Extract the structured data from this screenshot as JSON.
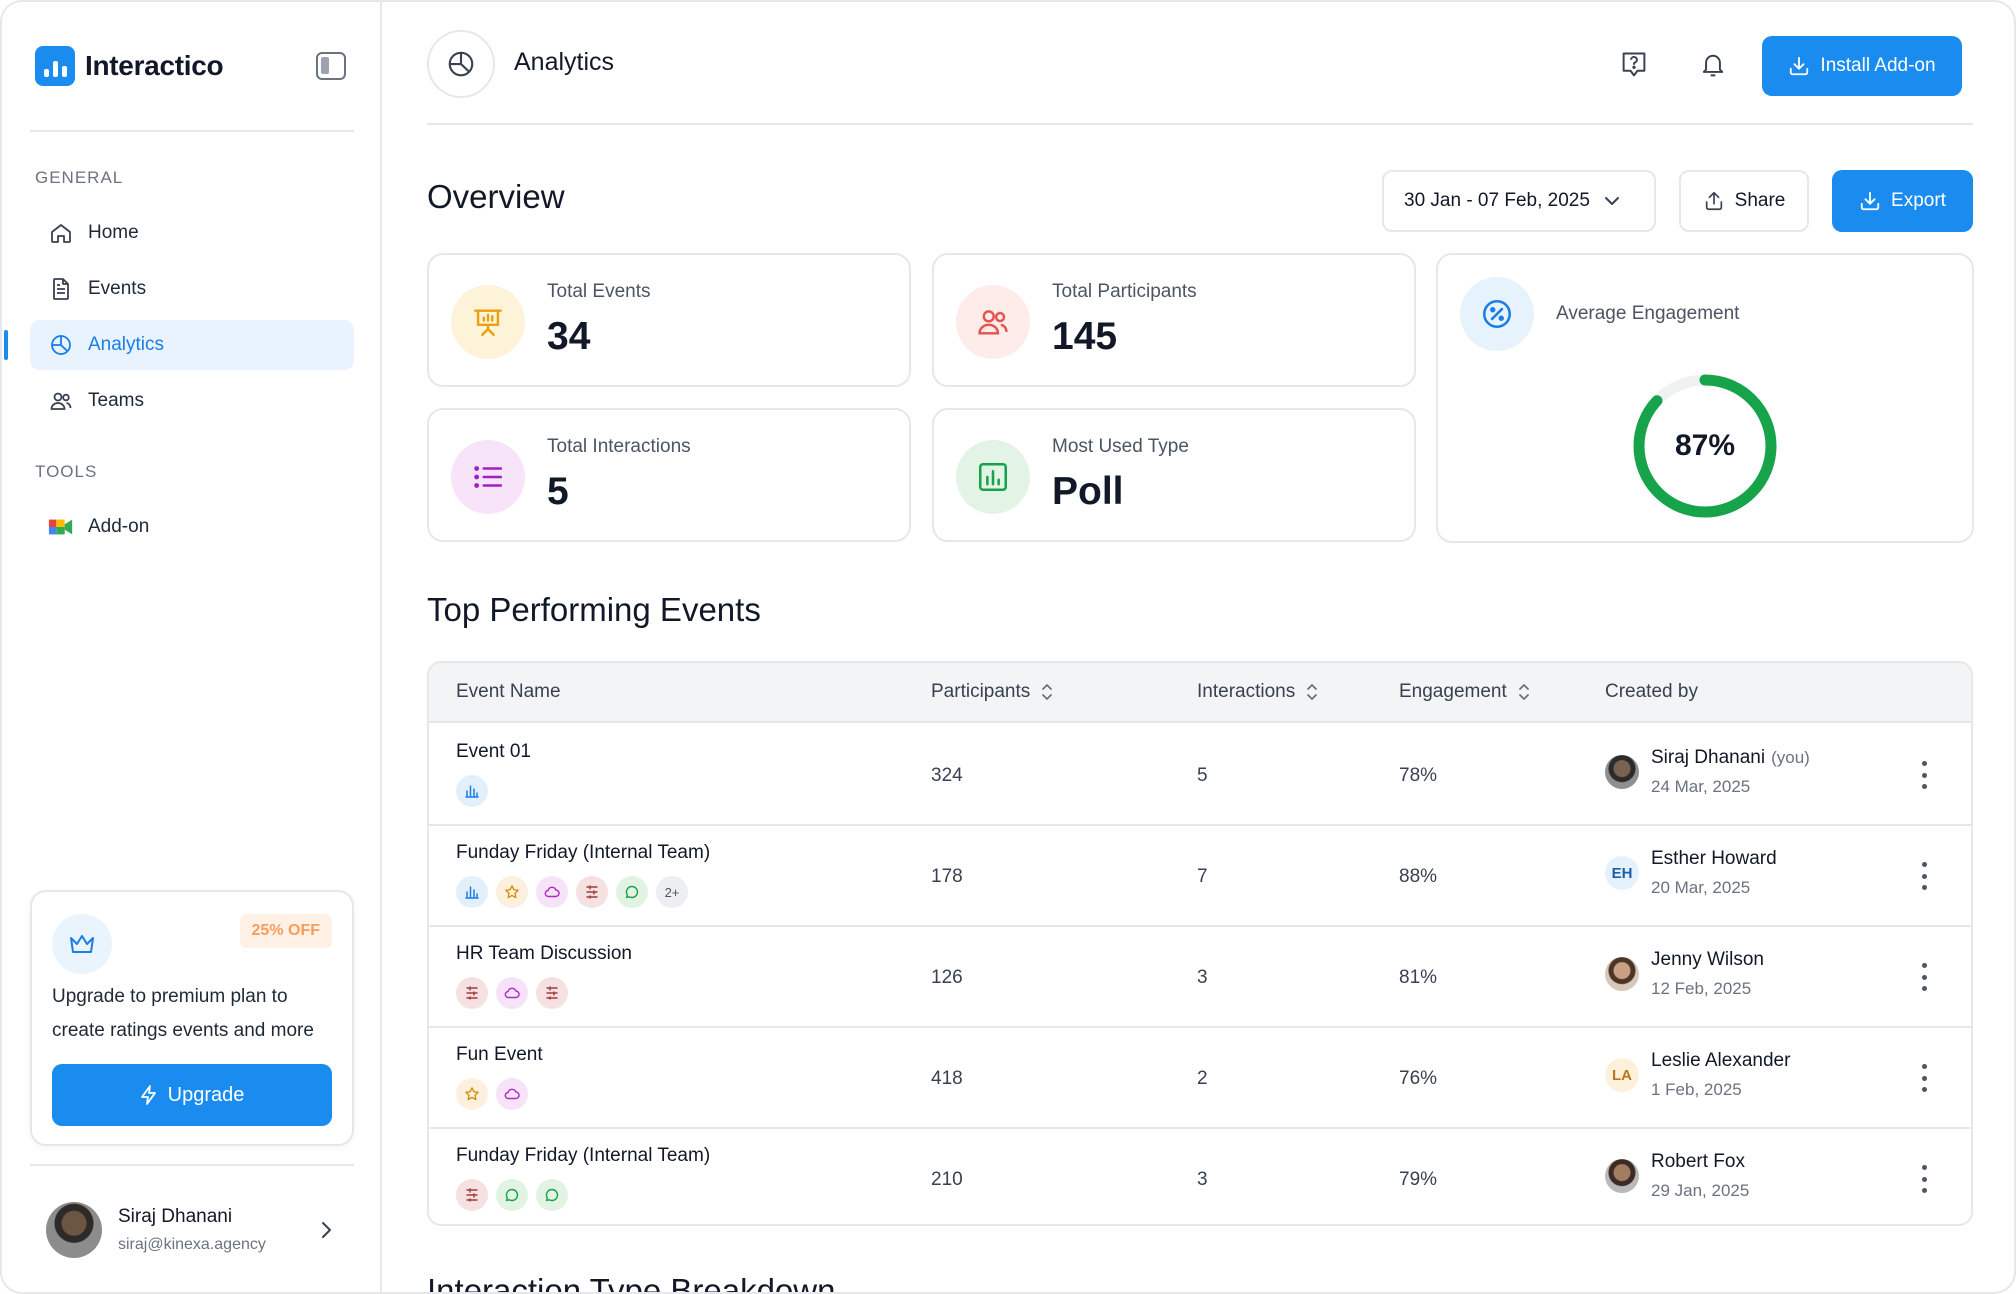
{
  "app": {
    "name": "Interactico"
  },
  "sidebar": {
    "general_label": "GENERAL",
    "tools_label": "TOOLS",
    "items": [
      {
        "label": "Home",
        "icon": "home-icon"
      },
      {
        "label": "Events",
        "icon": "document-icon"
      },
      {
        "label": "Analytics",
        "icon": "pie-chart-icon",
        "active": true
      },
      {
        "label": "Teams",
        "icon": "users-icon"
      }
    ],
    "tools": [
      {
        "label": "Add-on",
        "icon": "meet-addon-icon"
      }
    ],
    "promo": {
      "badge": "25% OFF",
      "text": "Upgrade to premium plan to create ratings events and more",
      "button": "Upgrade"
    },
    "profile": {
      "name": "Siraj Dhanani",
      "email": "siraj@kinexa.agency"
    }
  },
  "header": {
    "title": "Analytics",
    "install_button": "Install Add-on"
  },
  "overview": {
    "title": "Overview",
    "date_range": "30 Jan - 07 Feb, 2025",
    "share_label": "Share",
    "export_label": "Export",
    "stats": {
      "total_events": {
        "label": "Total Events",
        "value": "34"
      },
      "total_participants": {
        "label": "Total Participants",
        "value": "145"
      },
      "total_interactions": {
        "label": "Total Interactions",
        "value": "5"
      },
      "most_used_type": {
        "label": "Most Used Type",
        "value": "Poll"
      }
    },
    "engagement": {
      "label": "Average Engagement",
      "value": "87%",
      "fraction": 0.87,
      "color": "#16a34a"
    }
  },
  "top_events": {
    "title": "Top Performing Events",
    "columns": [
      "Event Name",
      "Participants",
      "Interactions",
      "Engagement",
      "Created by"
    ],
    "rows": [
      {
        "name": "Event 01",
        "tags": [
          "poll"
        ],
        "participants": "324",
        "interactions": "5",
        "engagement": "78%",
        "creator": "Siraj Dhanani",
        "you": "(you)",
        "date": "24 Mar, 2025",
        "initials": ""
      },
      {
        "name": "Funday Friday (Internal Team)",
        "tags": [
          "poll",
          "rating",
          "cloud",
          "quiz",
          "chat",
          "2+"
        ],
        "participants": "178",
        "interactions": "7",
        "engagement": "88%",
        "creator": "Esther Howard",
        "you": "",
        "date": "20 Mar, 2025",
        "initials": "EH"
      },
      {
        "name": "HR Team Discussion",
        "tags": [
          "quiz",
          "cloud",
          "quiz"
        ],
        "participants": "126",
        "interactions": "3",
        "engagement": "81%",
        "creator": "Jenny Wilson",
        "you": "",
        "date": "12 Feb, 2025",
        "initials": ""
      },
      {
        "name": "Fun Event",
        "tags": [
          "rating",
          "cloud"
        ],
        "participants": "418",
        "interactions": "2",
        "engagement": "76%",
        "creator": "Leslie Alexander",
        "you": "",
        "date": "1 Feb, 2025",
        "initials": "LA"
      },
      {
        "name": "Funday Friday (Internal Team)",
        "tags": [
          "quiz",
          "chat",
          "chat"
        ],
        "participants": "210",
        "interactions": "3",
        "engagement": "79%",
        "creator": "Robert Fox",
        "you": "",
        "date": "29 Jan, 2025",
        "initials": ""
      }
    ]
  },
  "breakdown": {
    "title": "Interaction Type Breakdown"
  },
  "colors": {
    "accent": "#1a8cf0",
    "success": "#16a34a"
  }
}
